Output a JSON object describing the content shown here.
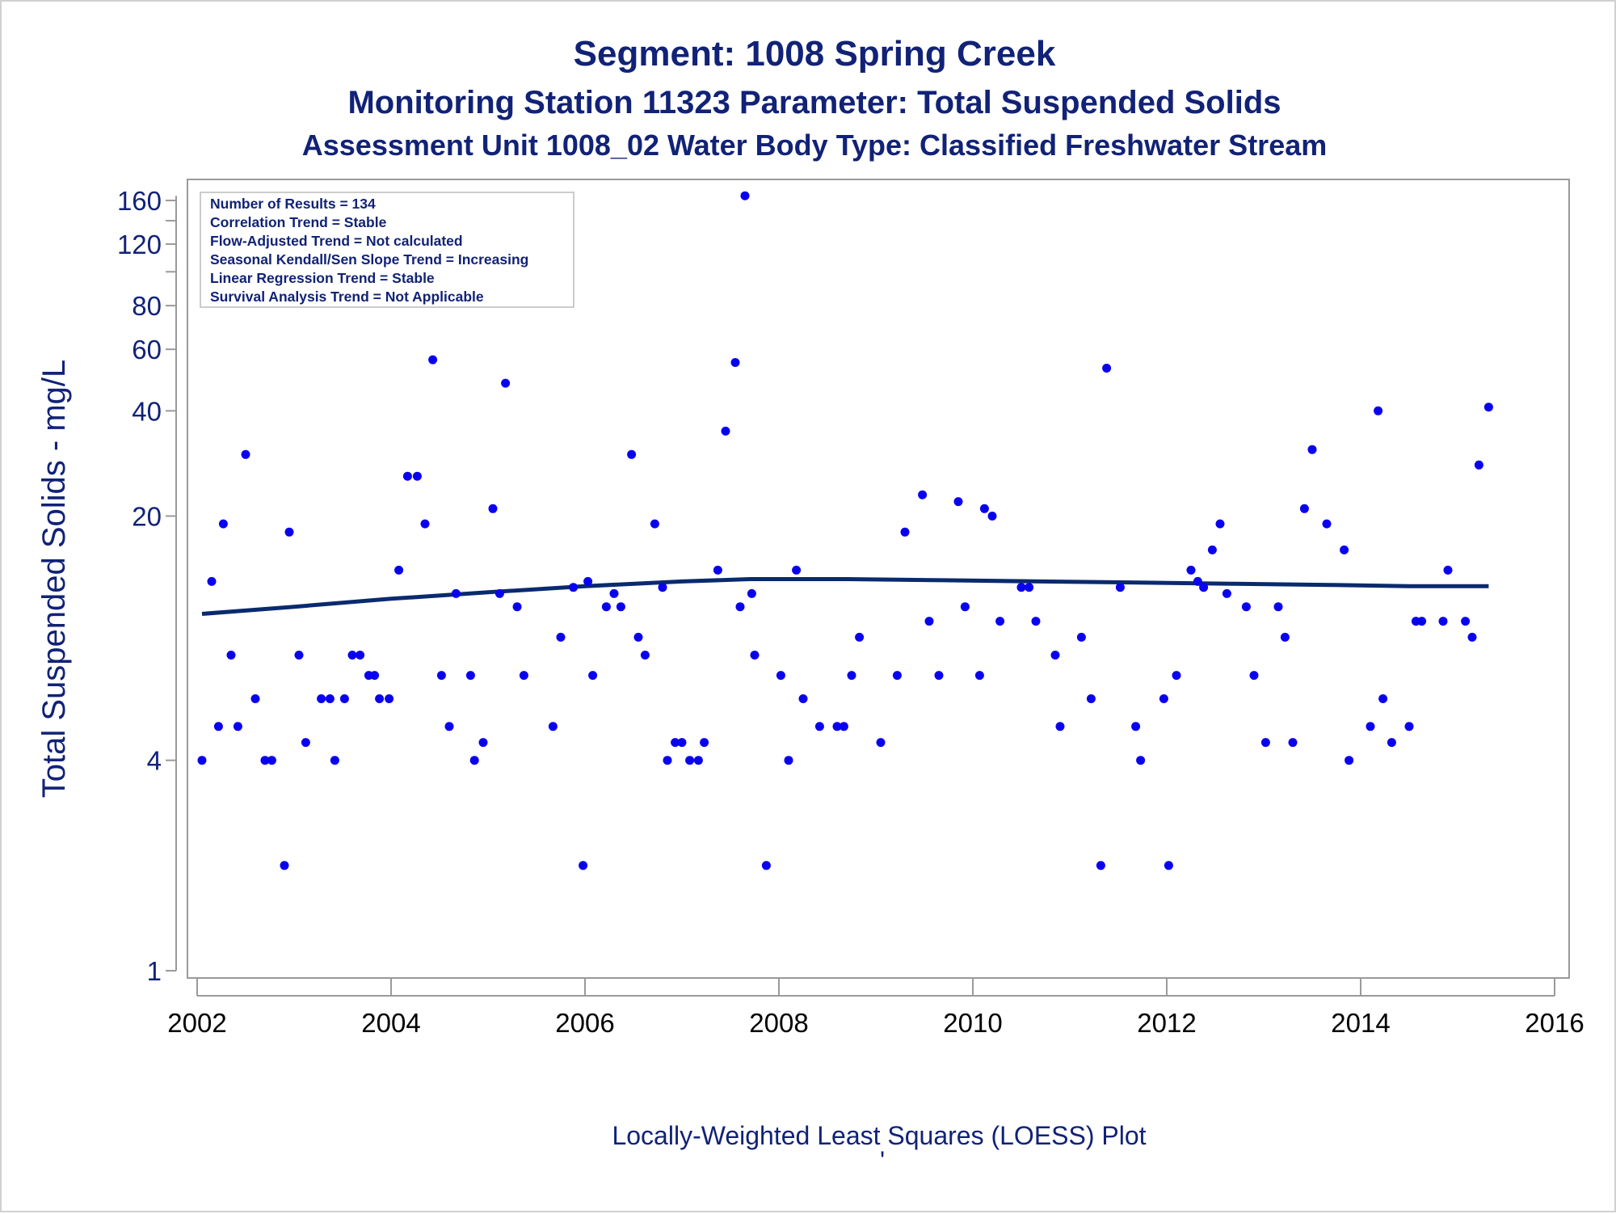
{
  "titles": {
    "line1": "Segment: 1008  Spring Creek",
    "line2": "Monitoring Station 11323 Parameter: Total Suspended Solids",
    "line3": "Assessment Unit 1008_02   Water Body Type: Classified Freshwater Stream"
  },
  "inset_lines": [
    "Number of Results = 134",
    "Correlation Trend = Stable",
    "Flow-Adjusted Trend = Not calculated",
    "Seasonal Kendall/Sen Slope Trend = Increasing",
    "Linear Regression Trend = Stable",
    "Survival Analysis Trend = Not Applicable"
  ],
  "footnote": "Locally-Weighted Least Squares (LOESS) Plot",
  "footnote_mark": "'",
  "colors": {
    "points": "#0a00f0",
    "loess": "#0a2a6e",
    "title": "#112277",
    "axis": "#9a9a9a"
  },
  "chart_data": {
    "type": "scatter",
    "xlabel": "",
    "ylabel": "Total Suspended Solids - mg/L",
    "yscale": "log",
    "xlim": [
      2002,
      2016
    ],
    "ylim": [
      1,
      170
    ],
    "x_ticks": [
      2002,
      2004,
      2006,
      2008,
      2010,
      2012,
      2014,
      2016
    ],
    "y_ticks": [
      1,
      4,
      20,
      40,
      60,
      80,
      120,
      160
    ],
    "y_minor_ticks": [
      100,
      140
    ],
    "grid": false,
    "series": [
      {
        "kind": "points",
        "points": [
          [
            2002.05,
            4
          ],
          [
            2002.15,
            13
          ],
          [
            2002.22,
            5
          ],
          [
            2002.27,
            19
          ],
          [
            2002.35,
            8
          ],
          [
            2002.42,
            5
          ],
          [
            2002.5,
            30
          ],
          [
            2002.6,
            6
          ],
          [
            2002.7,
            4
          ],
          [
            2002.77,
            4
          ],
          [
            2002.9,
            2
          ],
          [
            2002.95,
            18
          ],
          [
            2003.05,
            8
          ],
          [
            2003.12,
            4.5
          ],
          [
            2003.28,
            6
          ],
          [
            2003.37,
            6
          ],
          [
            2003.42,
            4
          ],
          [
            2003.52,
            6
          ],
          [
            2003.6,
            8
          ],
          [
            2003.68,
            8
          ],
          [
            2003.77,
            7
          ],
          [
            2003.83,
            7
          ],
          [
            2003.88,
            6
          ],
          [
            2003.98,
            6
          ],
          [
            2004.08,
            14
          ],
          [
            2004.17,
            26
          ],
          [
            2004.27,
            26
          ],
          [
            2004.35,
            19
          ],
          [
            2004.43,
            56
          ],
          [
            2004.52,
            7
          ],
          [
            2004.6,
            5
          ],
          [
            2004.67,
            12
          ],
          [
            2004.82,
            7
          ],
          [
            2004.86,
            4
          ],
          [
            2004.95,
            4.5
          ],
          [
            2005.05,
            21
          ],
          [
            2005.12,
            12
          ],
          [
            2005.18,
            48
          ],
          [
            2005.3,
            11
          ],
          [
            2005.37,
            7
          ],
          [
            2005.67,
            5
          ],
          [
            2005.75,
            9
          ],
          [
            2005.88,
            12.5
          ],
          [
            2005.98,
            2
          ],
          [
            2006.03,
            13
          ],
          [
            2006.08,
            7
          ],
          [
            2006.22,
            11
          ],
          [
            2006.3,
            12
          ],
          [
            2006.37,
            11
          ],
          [
            2006.48,
            30
          ],
          [
            2006.55,
            9
          ],
          [
            2006.62,
            8
          ],
          [
            2006.72,
            19
          ],
          [
            2006.8,
            12.5
          ],
          [
            2006.85,
            4
          ],
          [
            2006.93,
            4.5
          ],
          [
            2007.0,
            4.5
          ],
          [
            2007.08,
            4
          ],
          [
            2007.17,
            4
          ],
          [
            2007.23,
            4.5
          ],
          [
            2007.37,
            14
          ],
          [
            2007.45,
            35
          ],
          [
            2007.55,
            55
          ],
          [
            2007.6,
            11
          ],
          [
            2007.65,
            165
          ],
          [
            2007.72,
            12
          ],
          [
            2007.75,
            8
          ],
          [
            2007.87,
            2
          ],
          [
            2008.02,
            7
          ],
          [
            2008.1,
            4
          ],
          [
            2008.18,
            14
          ],
          [
            2008.25,
            6
          ],
          [
            2008.42,
            5
          ],
          [
            2008.6,
            5
          ],
          [
            2008.67,
            5
          ],
          [
            2008.75,
            7
          ],
          [
            2008.83,
            9
          ],
          [
            2009.05,
            4.5
          ],
          [
            2009.22,
            7
          ],
          [
            2009.3,
            18
          ],
          [
            2009.48,
            23
          ],
          [
            2009.55,
            10
          ],
          [
            2009.65,
            7
          ],
          [
            2009.85,
            22
          ],
          [
            2009.92,
            11
          ],
          [
            2010.07,
            7
          ],
          [
            2010.12,
            21
          ],
          [
            2010.2,
            20
          ],
          [
            2010.28,
            10
          ],
          [
            2010.5,
            12.5
          ],
          [
            2010.58,
            12.5
          ],
          [
            2010.65,
            10
          ],
          [
            2010.85,
            8
          ],
          [
            2010.9,
            5
          ],
          [
            2011.12,
            9
          ],
          [
            2011.22,
            6
          ],
          [
            2011.32,
            2
          ],
          [
            2011.38,
            53
          ],
          [
            2011.52,
            12.5
          ],
          [
            2011.68,
            5
          ],
          [
            2011.73,
            4
          ],
          [
            2011.97,
            6
          ],
          [
            2012.02,
            2
          ],
          [
            2012.1,
            7
          ],
          [
            2012.25,
            14
          ],
          [
            2012.32,
            13
          ],
          [
            2012.38,
            12.5
          ],
          [
            2012.47,
            16
          ],
          [
            2012.55,
            19
          ],
          [
            2012.62,
            12
          ],
          [
            2012.82,
            11
          ],
          [
            2012.9,
            7
          ],
          [
            2013.02,
            4.5
          ],
          [
            2013.15,
            11
          ],
          [
            2013.22,
            9
          ],
          [
            2013.3,
            4.5
          ],
          [
            2013.42,
            21
          ],
          [
            2013.5,
            31
          ],
          [
            2013.65,
            19
          ],
          [
            2013.83,
            16
          ],
          [
            2013.88,
            4
          ],
          [
            2014.1,
            5
          ],
          [
            2014.18,
            40
          ],
          [
            2014.23,
            6
          ],
          [
            2014.32,
            4.5
          ],
          [
            2014.5,
            5
          ],
          [
            2014.57,
            10
          ],
          [
            2014.63,
            10
          ],
          [
            2014.85,
            10
          ],
          [
            2014.9,
            14
          ],
          [
            2015.08,
            10
          ],
          [
            2015.15,
            9
          ],
          [
            2015.22,
            28
          ],
          [
            2015.32,
            41
          ]
        ]
      },
      {
        "kind": "line",
        "points": [
          [
            2002.05,
            10.5
          ],
          [
            2003.0,
            11.0
          ],
          [
            2004.0,
            11.6
          ],
          [
            2005.0,
            12.1
          ],
          [
            2006.0,
            12.6
          ],
          [
            2007.0,
            13.0
          ],
          [
            2007.7,
            13.2
          ],
          [
            2008.7,
            13.2
          ],
          [
            2009.7,
            13.1
          ],
          [
            2010.7,
            13.0
          ],
          [
            2011.7,
            12.9
          ],
          [
            2012.7,
            12.8
          ],
          [
            2013.7,
            12.7
          ],
          [
            2014.5,
            12.6
          ],
          [
            2015.32,
            12.6
          ]
        ]
      }
    ]
  }
}
